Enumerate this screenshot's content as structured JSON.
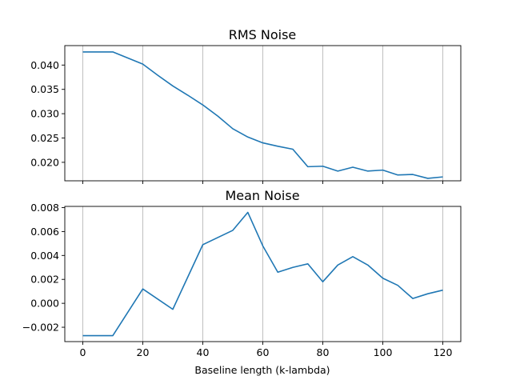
{
  "colors": {
    "line": "#1f77b4",
    "grid": "#b0b0b0",
    "axes": "#000000",
    "background": "#ffffff"
  },
  "chart_data": [
    {
      "type": "line",
      "title": "RMS Noise",
      "xlabel": "",
      "ylabel": "",
      "xlim": [
        -6,
        126
      ],
      "ylim": [
        0.0162,
        0.044
      ],
      "grid": "vertical",
      "xticks": [
        0,
        20,
        40,
        60,
        80,
        100,
        120
      ],
      "show_xtick_labels": false,
      "yticks": [
        0.02,
        0.025,
        0.03,
        0.035,
        0.04
      ],
      "ytick_labels": [
        "0.020",
        "0.025",
        "0.030",
        "0.035",
        "0.040"
      ],
      "x": [
        0,
        10,
        20,
        25,
        30,
        35,
        40,
        45,
        50,
        55,
        60,
        65,
        70,
        75,
        80,
        85,
        90,
        95,
        100,
        105,
        110,
        115,
        120
      ],
      "series": [
        {
          "values": [
            0.0427,
            0.0427,
            0.0402,
            0.0379,
            0.0357,
            0.0338,
            0.0318,
            0.0295,
            0.0269,
            0.0252,
            0.024,
            0.0233,
            0.0227,
            0.0191,
            0.0192,
            0.0182,
            0.019,
            0.0182,
            0.0184,
            0.0174,
            0.0175,
            0.0167,
            0.017
          ]
        }
      ]
    },
    {
      "type": "line",
      "title": "Mean Noise",
      "xlabel": "Baseline length (k-lambda)",
      "ylabel": "",
      "xlim": [
        -6,
        126
      ],
      "ylim": [
        -0.0032,
        0.0081
      ],
      "grid": "vertical",
      "xticks": [
        0,
        20,
        40,
        60,
        80,
        100,
        120
      ],
      "xtick_labels": [
        "0",
        "20",
        "40",
        "60",
        "80",
        "100",
        "120"
      ],
      "show_xtick_labels": true,
      "yticks": [
        -0.002,
        0.0,
        0.002,
        0.004,
        0.006,
        0.008
      ],
      "ytick_labels": [
        "−0.002",
        "0.000",
        "0.002",
        "0.004",
        "0.006",
        "0.008"
      ],
      "x": [
        0,
        10,
        20,
        30,
        40,
        50,
        55,
        60,
        65,
        70,
        75,
        80,
        85,
        90,
        95,
        100,
        105,
        110,
        115,
        120
      ],
      "series": [
        {
          "values": [
            -0.0027,
            -0.0027,
            0.0012,
            -0.0005,
            0.0049,
            0.0061,
            0.0076,
            0.0048,
            0.0026,
            0.003,
            0.0033,
            0.0018,
            0.0032,
            0.0039,
            0.0032,
            0.0021,
            0.0015,
            0.0004,
            0.0008,
            0.0011
          ]
        }
      ]
    }
  ]
}
